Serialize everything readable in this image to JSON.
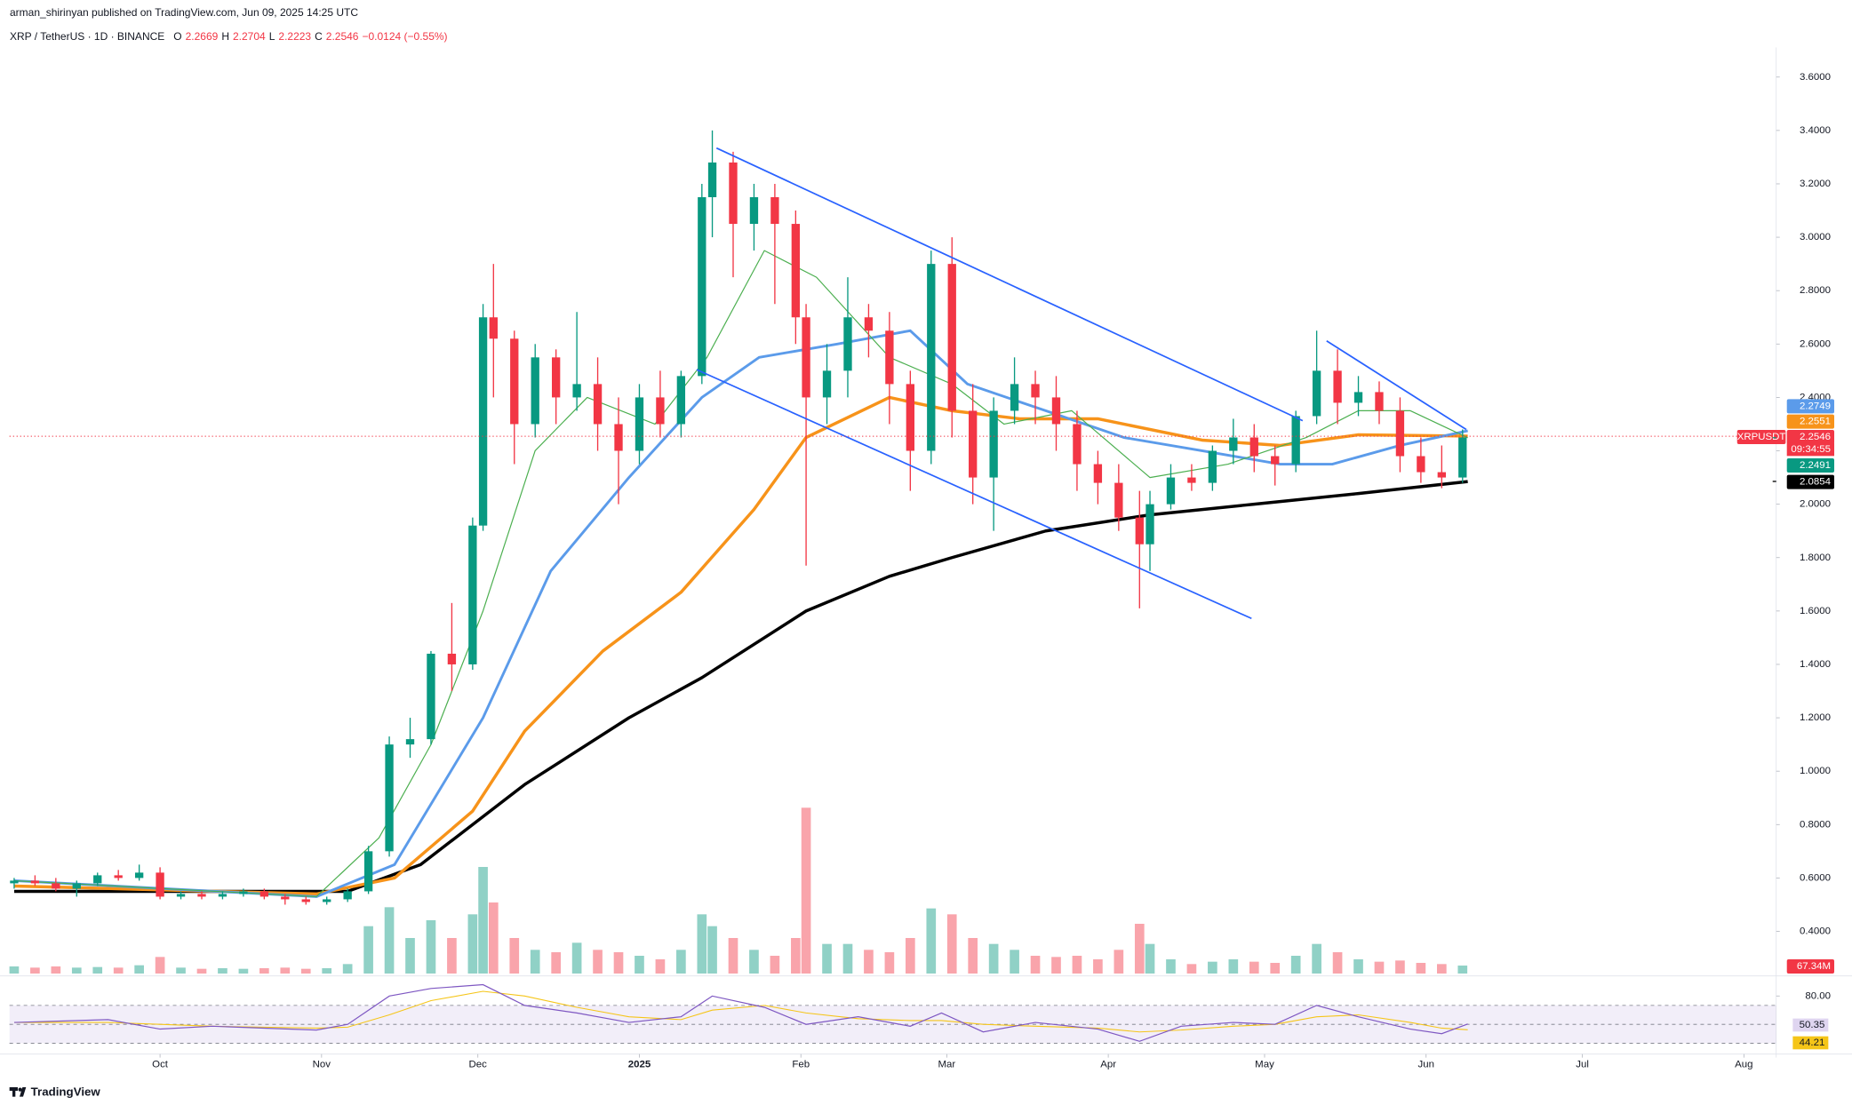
{
  "header": {
    "publisher": "arman_shirinyan published on TradingView.com, Jun 09, 2025 14:25 UTC",
    "symbol": "XRP / TetherUS · 1D · BINANCE",
    "ohlc": [
      {
        "key": "O",
        "value": "2.2669"
      },
      {
        "key": "H",
        "value": "2.2704"
      },
      {
        "key": "L",
        "value": "2.2223"
      },
      {
        "key": "C",
        "value": "2.2546"
      }
    ],
    "change": "−0.0124 (−0.55%)"
  },
  "footer": {
    "brand": "TradingView"
  },
  "chart_data": {
    "type": "candlestick",
    "up_color": "#089981",
    "down_color": "#f23645",
    "xlim": [
      -28.9,
      310.2
    ],
    "ylim": [
      0.242,
      3.689
    ],
    "xticks": [
      {
        "value": 0,
        "label": "Oct"
      },
      {
        "value": 31,
        "label": "Nov"
      },
      {
        "value": 61,
        "label": "Dec"
      },
      {
        "value": 92,
        "label": "2025"
      },
      {
        "value": 123,
        "label": "Feb"
      },
      {
        "value": 151,
        "label": "Mar"
      },
      {
        "value": 182,
        "label": "Apr"
      },
      {
        "value": 212,
        "label": "May"
      },
      {
        "value": 243,
        "label": "Jun"
      },
      {
        "value": 273,
        "label": "Jul"
      },
      {
        "value": 304,
        "label": "Aug"
      }
    ],
    "yticks": [
      {
        "value": 0.4,
        "label": "0.4000"
      },
      {
        "value": 0.6,
        "label": "0.6000"
      },
      {
        "value": 0.8,
        "label": "0.8000"
      },
      {
        "value": 1.0,
        "label": "1.0000"
      },
      {
        "value": 1.2,
        "label": "1.2000"
      },
      {
        "value": 1.4,
        "label": "1.4000"
      },
      {
        "value": 1.6,
        "label": "1.6000"
      },
      {
        "value": 1.8,
        "label": "1.8000"
      },
      {
        "value": 2.0,
        "label": "2.0000"
      },
      {
        "value": 2.2,
        "label": "2.2000"
      },
      {
        "value": 2.4,
        "label": "2.4000"
      },
      {
        "value": 2.6,
        "label": "2.6000"
      },
      {
        "value": 2.8,
        "label": "2.8000"
      },
      {
        "value": 3.0,
        "label": "3.0000"
      },
      {
        "value": 3.2,
        "label": "3.2000"
      },
      {
        "value": 3.4,
        "label": "3.4000"
      },
      {
        "value": 3.6,
        "label": "3.6000"
      }
    ],
    "x": [
      -28,
      -24,
      -20,
      -16,
      -12,
      -8,
      -4,
      0,
      4,
      8,
      12,
      16,
      20,
      24,
      28,
      32,
      36,
      40,
      44,
      48,
      52,
      56,
      60,
      62,
      64,
      68,
      72,
      76,
      80,
      84,
      88,
      92,
      96,
      100,
      104,
      106,
      110,
      114,
      118,
      122,
      124,
      128,
      132,
      136,
      140,
      144,
      148,
      152,
      156,
      160,
      164,
      168,
      172,
      176,
      180,
      184,
      188,
      190,
      194,
      198,
      202,
      206,
      210,
      214,
      218,
      222,
      226,
      230,
      234,
      238,
      242,
      246,
      250
    ],
    "open": [
      0.58,
      0.59,
      0.58,
      0.56,
      0.58,
      0.61,
      0.6,
      0.62,
      0.53,
      0.54,
      0.53,
      0.54,
      0.55,
      0.53,
      0.52,
      0.51,
      0.52,
      0.55,
      0.7,
      1.1,
      1.12,
      1.44,
      1.4,
      1.92,
      2.7,
      2.62,
      2.3,
      2.55,
      2.4,
      2.45,
      2.3,
      2.2,
      2.4,
      2.3,
      2.48,
      3.15,
      3.28,
      3.05,
      3.15,
      3.05,
      2.7,
      2.4,
      2.5,
      2.7,
      2.65,
      2.45,
      2.2,
      2.9,
      2.35,
      2.1,
      2.35,
      2.45,
      2.4,
      2.3,
      2.15,
      2.08,
      1.95,
      1.85,
      2.0,
      2.1,
      2.08,
      2.2,
      2.25,
      2.18,
      2.15,
      2.33,
      2.5,
      2.38,
      2.42,
      2.35,
      2.18,
      2.12,
      2.1
    ],
    "high": [
      0.6,
      0.61,
      0.6,
      0.59,
      0.62,
      0.63,
      0.65,
      0.64,
      0.55,
      0.55,
      0.55,
      0.56,
      0.56,
      0.54,
      0.53,
      0.53,
      0.56,
      0.72,
      1.13,
      1.2,
      1.45,
      1.63,
      1.95,
      2.75,
      2.9,
      2.65,
      2.6,
      2.58,
      2.72,
      2.55,
      2.4,
      2.45,
      2.5,
      2.5,
      3.2,
      3.4,
      3.32,
      3.2,
      3.2,
      3.1,
      2.75,
      2.6,
      2.85,
      2.75,
      2.72,
      2.5,
      2.95,
      3.0,
      2.45,
      2.4,
      2.55,
      2.5,
      2.48,
      2.35,
      2.2,
      2.15,
      2.05,
      2.05,
      2.15,
      2.15,
      2.22,
      2.32,
      2.3,
      2.22,
      2.35,
      2.65,
      2.58,
      2.48,
      2.46,
      2.4,
      2.25,
      2.22,
      2.28
    ],
    "low": [
      0.56,
      0.57,
      0.55,
      0.53,
      0.57,
      0.59,
      0.59,
      0.52,
      0.52,
      0.52,
      0.52,
      0.53,
      0.52,
      0.5,
      0.5,
      0.5,
      0.51,
      0.54,
      0.68,
      1.05,
      1.1,
      1.3,
      1.38,
      1.9,
      2.4,
      2.15,
      2.25,
      2.3,
      2.35,
      2.2,
      2.0,
      2.15,
      2.25,
      2.25,
      2.45,
      3.0,
      2.85,
      2.95,
      2.75,
      2.6,
      1.77,
      2.3,
      2.4,
      2.55,
      2.3,
      2.05,
      2.15,
      2.25,
      2.0,
      1.9,
      2.3,
      2.3,
      2.2,
      2.05,
      2.0,
      1.9,
      1.61,
      1.75,
      1.98,
      2.05,
      2.05,
      2.15,
      2.12,
      2.07,
      2.12,
      2.3,
      2.3,
      2.33,
      2.3,
      2.12,
      2.08,
      2.06,
      2.08
    ],
    "close": [
      0.59,
      0.58,
      0.56,
      0.58,
      0.61,
      0.6,
      0.62,
      0.53,
      0.54,
      0.53,
      0.54,
      0.55,
      0.53,
      0.52,
      0.51,
      0.52,
      0.55,
      0.7,
      1.1,
      1.12,
      1.44,
      1.4,
      1.92,
      2.7,
      2.62,
      2.3,
      2.55,
      2.4,
      2.45,
      2.3,
      2.2,
      2.4,
      2.3,
      2.48,
      3.15,
      3.28,
      3.05,
      3.15,
      3.05,
      2.7,
      2.4,
      2.5,
      2.7,
      2.65,
      2.45,
      2.2,
      2.9,
      2.35,
      2.1,
      2.35,
      2.45,
      2.4,
      2.3,
      2.15,
      2.08,
      1.95,
      1.85,
      2.0,
      2.1,
      2.08,
      2.2,
      2.25,
      2.18,
      2.15,
      2.33,
      2.5,
      2.38,
      2.42,
      2.35,
      2.18,
      2.12,
      2.1,
      2.25
    ],
    "volume": [
      60,
      50,
      60,
      50,
      55,
      50,
      70,
      140,
      50,
      40,
      45,
      40,
      45,
      50,
      40,
      45,
      80,
      400,
      560,
      300,
      450,
      300,
      500,
      900,
      600,
      300,
      200,
      180,
      260,
      200,
      180,
      150,
      120,
      200,
      500,
      400,
      300,
      200,
      150,
      300,
      1400,
      250,
      250,
      200,
      180,
      300,
      550,
      500,
      300,
      250,
      200,
      150,
      140,
      150,
      120,
      200,
      420,
      250,
      120,
      80,
      100,
      120,
      100,
      90,
      150,
      250,
      180,
      120,
      100,
      110,
      90,
      80,
      67.34
    ],
    "last_volume_label": "67.34M",
    "series": [
      {
        "color": "#000000",
        "width": 2.6,
        "x": [
          -28,
          36,
          50,
          70,
          90,
          104,
          124,
          140,
          152,
          170,
          190,
          210,
          230,
          251
        ],
        "values": [
          0.55,
          0.55,
          0.65,
          0.95,
          1.2,
          1.35,
          1.6,
          1.73,
          1.8,
          1.9,
          1.96,
          2.0,
          2.04,
          2.085
        ]
      },
      {
        "color": "#f7931a",
        "width": 2.6,
        "x": [
          -28,
          30,
          45,
          60,
          70,
          85,
          100,
          114,
          124,
          140,
          152,
          165,
          180,
          200,
          215,
          230,
          251
        ],
        "values": [
          0.57,
          0.54,
          0.6,
          0.85,
          1.15,
          1.45,
          1.67,
          1.98,
          2.25,
          2.4,
          2.35,
          2.32,
          2.32,
          2.24,
          2.22,
          2.26,
          2.255
        ]
      },
      {
        "color": "#5b9bea",
        "width": 2.2,
        "x": [
          -28,
          30,
          45,
          62,
          75,
          90,
          104,
          115,
          130,
          144,
          155,
          170,
          185,
          200,
          215,
          225,
          238,
          251
        ],
        "values": [
          0.59,
          0.53,
          0.65,
          1.2,
          1.75,
          2.1,
          2.4,
          2.55,
          2.6,
          2.65,
          2.45,
          2.35,
          2.25,
          2.2,
          2.15,
          2.15,
          2.22,
          2.275
        ]
      },
      {
        "color": "#4caf50",
        "width": 0.9,
        "x": [
          -28,
          30,
          42,
          52,
          62,
          72,
          82,
          95,
          105,
          116,
          126,
          140,
          152,
          162,
          175,
          190,
          205,
          220,
          230,
          240,
          251
        ],
        "values": [
          0.59,
          0.53,
          0.75,
          1.1,
          1.6,
          2.2,
          2.4,
          2.3,
          2.55,
          2.95,
          2.85,
          2.55,
          2.45,
          2.3,
          2.35,
          2.1,
          2.15,
          2.25,
          2.35,
          2.35,
          2.249
        ]
      }
    ],
    "trendlines": [
      {
        "color": "#2962ff",
        "x": [
          106.8,
          219.3
        ],
        "y": [
          3.334,
          2.313
        ]
      },
      {
        "color": "#2962ff",
        "x": [
          103.0,
          209.5
        ],
        "y": [
          2.504,
          1.572
        ]
      },
      {
        "color": "#2962ff",
        "x": [
          223.9,
          250.7
        ],
        "y": [
          2.612,
          2.28
        ]
      }
    ],
    "price_labels": [
      {
        "value": 2.2749,
        "label": "2.2749",
        "color": "#5b9bea"
      },
      {
        "value": 2.2551,
        "label": "2.2551",
        "color": "#f7931a"
      },
      {
        "value": 2.2546,
        "label": "2.2546",
        "color": "#f23645"
      },
      {
        "value": 2.2491,
        "label": "2.2491",
        "color": "#089981"
      },
      {
        "value": 2.0854,
        "label": "2.0854",
        "color": "#000000"
      }
    ],
    "symbol_tag": "XRPUSDT",
    "countdown": "09:34:55",
    "rsi": {
      "color": "#7e57c2",
      "ma_color": "#f5c518",
      "ylim": [
        21,
        97.5
      ],
      "yticks": [
        {
          "value": 80,
          "label": "80.00"
        }
      ],
      "levels": [
        70,
        50,
        30
      ],
      "x": [
        -28,
        -10,
        0,
        10,
        20,
        30,
        36,
        44,
        52,
        62,
        70,
        80,
        90,
        100,
        106,
        116,
        124,
        134,
        144,
        150,
        158,
        168,
        180,
        188,
        196,
        206,
        214,
        222,
        230,
        240,
        246,
        251
      ],
      "values": [
        52,
        55,
        45,
        48,
        46,
        44,
        50,
        80,
        88,
        92,
        70,
        62,
        52,
        58,
        80,
        68,
        50,
        58,
        48,
        62,
        42,
        52,
        45,
        32,
        48,
        52,
        50,
        70,
        58,
        45,
        40,
        50.35
      ],
      "ma_values": [
        52,
        52,
        50,
        48,
        47,
        46,
        47,
        60,
        75,
        85,
        80,
        68,
        58,
        55,
        65,
        70,
        62,
        56,
        54,
        54,
        50,
        48,
        46,
        42,
        44,
        48,
        50,
        58,
        60,
        52,
        46,
        44.21
      ]
    }
  }
}
